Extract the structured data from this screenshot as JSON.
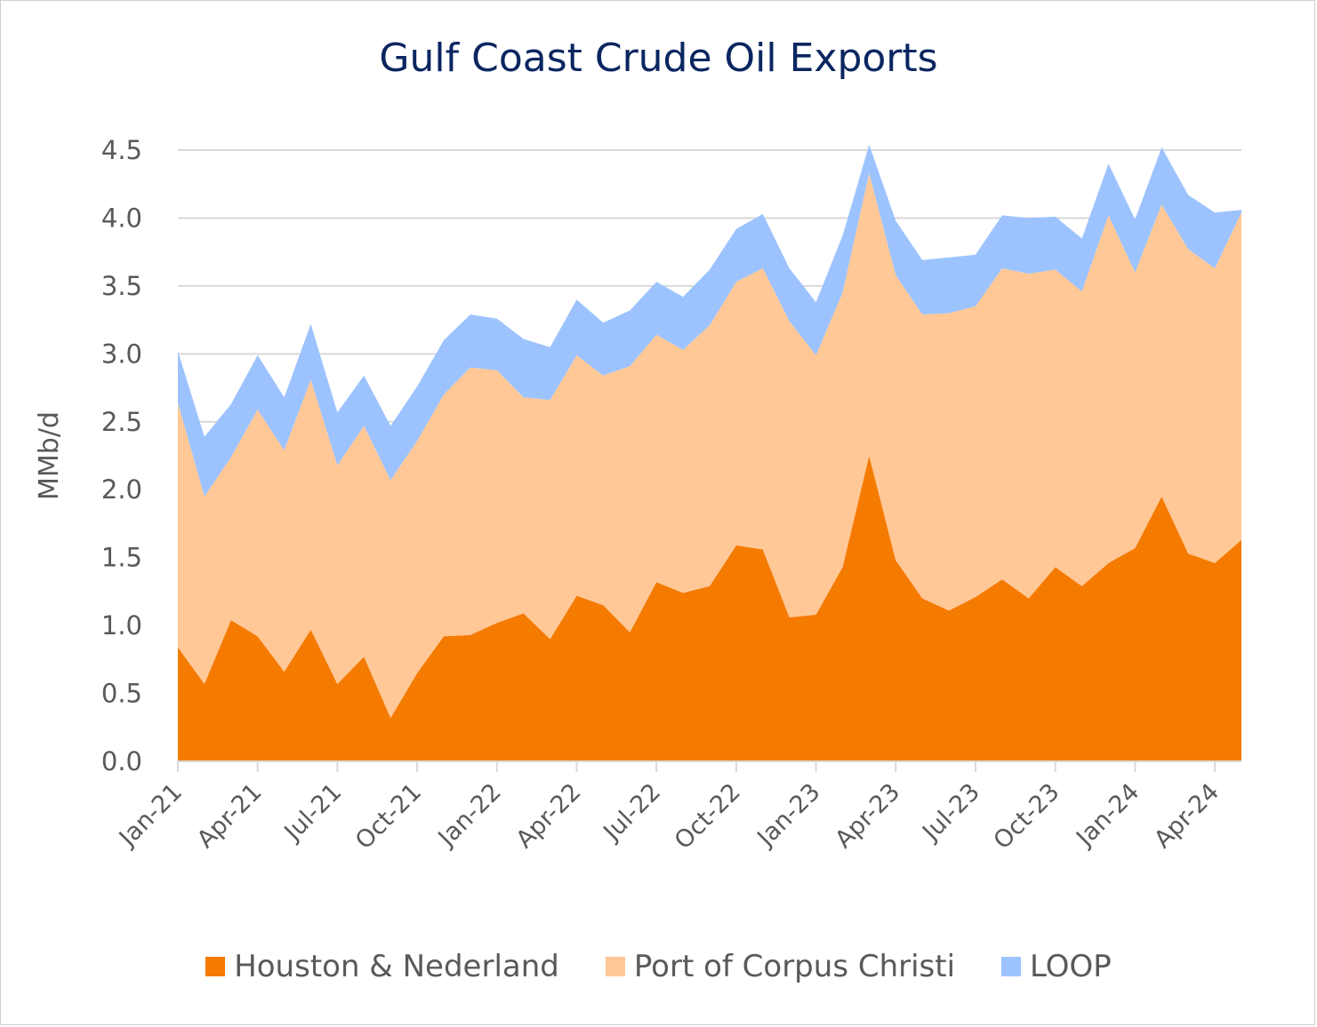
{
  "chart_data": {
    "type": "area",
    "stacked": true,
    "title": "Gulf Coast Crude Oil Exports",
    "ylabel": "MMb/d",
    "xlabel": "",
    "ylim": [
      0,
      4.5
    ],
    "yticks": [
      "0.0",
      "0.5",
      "1.0",
      "1.5",
      "2.0",
      "2.5",
      "3.0",
      "3.5",
      "4.0",
      "4.5"
    ],
    "grid": true,
    "legend_position": "bottom",
    "x_tick_labels": [
      {
        "index": 0,
        "label": "Jan-21"
      },
      {
        "index": 3,
        "label": "Apr-21"
      },
      {
        "index": 6,
        "label": "Jul-21"
      },
      {
        "index": 9,
        "label": "Oct-21"
      },
      {
        "index": 12,
        "label": "Jan-22"
      },
      {
        "index": 15,
        "label": "Apr-22"
      },
      {
        "index": 18,
        "label": "Jul-22"
      },
      {
        "index": 21,
        "label": "Oct-22"
      },
      {
        "index": 24,
        "label": "Jan-23"
      },
      {
        "index": 27,
        "label": "Apr-23"
      },
      {
        "index": 30,
        "label": "Jul-23"
      },
      {
        "index": 33,
        "label": "Oct-23"
      },
      {
        "index": 36,
        "label": "Jan-24"
      },
      {
        "index": 39,
        "label": "Apr-24"
      }
    ],
    "categories": [
      "Jan-21",
      "Feb-21",
      "Mar-21",
      "Apr-21",
      "May-21",
      "Jun-21",
      "Jul-21",
      "Aug-21",
      "Sep-21",
      "Oct-21",
      "Nov-21",
      "Dec-21",
      "Jan-22",
      "Feb-22",
      "Mar-22",
      "Apr-22",
      "May-22",
      "Jun-22",
      "Jul-22",
      "Aug-22",
      "Sep-22",
      "Oct-22",
      "Nov-22",
      "Dec-22",
      "Jan-23",
      "Feb-23",
      "Mar-23",
      "Apr-23",
      "May-23",
      "Jun-23",
      "Jul-23",
      "Aug-23",
      "Sep-23",
      "Oct-23",
      "Nov-23",
      "Dec-23",
      "Jan-24",
      "Feb-24",
      "Mar-24",
      "Apr-24",
      "May-24"
    ],
    "series": [
      {
        "name": "Houston & Nederland",
        "color": "#f57a00",
        "values": [
          0.84,
          0.57,
          1.04,
          0.92,
          0.66,
          0.97,
          0.57,
          0.77,
          0.32,
          0.65,
          0.92,
          0.93,
          1.02,
          1.09,
          0.9,
          1.22,
          1.15,
          0.95,
          1.32,
          1.24,
          1.29,
          1.59,
          1.56,
          1.06,
          1.08,
          1.43,
          2.25,
          1.48,
          1.2,
          1.11,
          1.21,
          1.34,
          1.2,
          1.43,
          1.29,
          1.46,
          1.57,
          1.95,
          1.53,
          1.46,
          1.63
        ]
      },
      {
        "name": "Port of Corpus Christi",
        "color": "#ffc896",
        "values": [
          1.8,
          1.38,
          1.2,
          1.67,
          1.63,
          1.84,
          1.61,
          1.7,
          1.75,
          1.71,
          1.78,
          1.97,
          1.86,
          1.59,
          1.76,
          1.77,
          1.69,
          1.96,
          1.82,
          1.79,
          1.92,
          1.94,
          2.07,
          2.18,
          1.91,
          2.02,
          2.08,
          2.1,
          2.09,
          2.19,
          2.14,
          2.29,
          2.39,
          2.19,
          2.17,
          2.56,
          2.03,
          2.15,
          2.24,
          2.17,
          2.41
        ]
      },
      {
        "name": "LOOP",
        "color": "#9dc3ff",
        "values": [
          0.38,
          0.44,
          0.39,
          0.4,
          0.39,
          0.41,
          0.39,
          0.37,
          0.4,
          0.4,
          0.4,
          0.39,
          0.38,
          0.43,
          0.39,
          0.41,
          0.39,
          0.41,
          0.39,
          0.39,
          0.41,
          0.39,
          0.4,
          0.39,
          0.39,
          0.42,
          0.21,
          0.4,
          0.4,
          0.41,
          0.38,
          0.39,
          0.41,
          0.39,
          0.39,
          0.38,
          0.39,
          0.42,
          0.4,
          0.41,
          0.02
        ]
      }
    ]
  }
}
